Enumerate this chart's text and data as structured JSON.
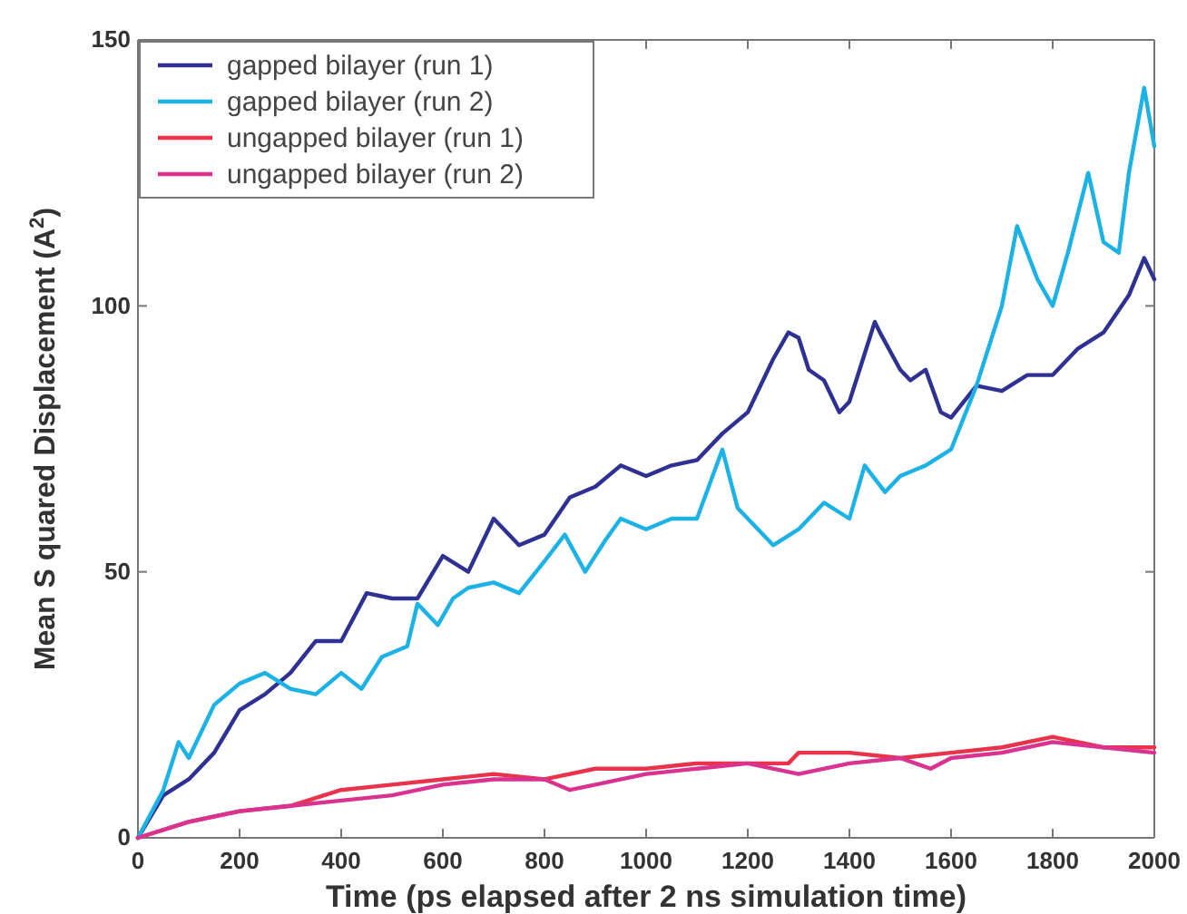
{
  "chart_data": {
    "type": "line",
    "xlabel": "Time  (ps  elapsed  after  2  ns  simulation  time)",
    "ylabel": "Mean S quared  Displacement  (A$^{2}$)",
    "xlim": [
      0,
      2000
    ],
    "xticks": [
      0,
      200,
      400,
      600,
      800,
      1000,
      1200,
      1400,
      1600,
      1800,
      2000
    ],
    "ylim": [
      0,
      150
    ],
    "yticks": [
      0,
      50,
      100,
      150
    ],
    "grid": false,
    "legend": "top left",
    "series": [
      {
        "name": "gapped bilayer (run 1)",
        "color": "#2e3192",
        "x": [
          0,
          50,
          100,
          150,
          200,
          250,
          300,
          350,
          400,
          450,
          500,
          550,
          600,
          650,
          700,
          750,
          800,
          850,
          900,
          950,
          1000,
          1050,
          1100,
          1150,
          1200,
          1250,
          1280,
          1300,
          1320,
          1350,
          1380,
          1400,
          1420,
          1450,
          1460,
          1500,
          1520,
          1550,
          1580,
          1600,
          1650,
          1700,
          1750,
          1800,
          1850,
          1900,
          1950,
          1980,
          2000
        ],
        "values": [
          0,
          8,
          11,
          16,
          24,
          27,
          31,
          37,
          37,
          46,
          45,
          45,
          53,
          50,
          60,
          55,
          57,
          64,
          66,
          70,
          68,
          70,
          71,
          76,
          80,
          90,
          95,
          94,
          88,
          86,
          80,
          82,
          88,
          97,
          95,
          88,
          86,
          88,
          80,
          79,
          85,
          84,
          87,
          87,
          92,
          95,
          102,
          109,
          105
        ]
      },
      {
        "name": "gapped bilayer (run 2)",
        "color": "#1db2e6",
        "x": [
          0,
          50,
          80,
          100,
          150,
          200,
          250,
          300,
          350,
          400,
          440,
          480,
          530,
          550,
          590,
          620,
          650,
          700,
          750,
          800,
          840,
          880,
          920,
          950,
          1000,
          1050,
          1100,
          1150,
          1180,
          1250,
          1300,
          1350,
          1400,
          1430,
          1470,
          1500,
          1550,
          1600,
          1650,
          1700,
          1730,
          1770,
          1800,
          1830,
          1870,
          1900,
          1930,
          1950,
          1980,
          2000
        ],
        "values": [
          0,
          9,
          18,
          15,
          25,
          29,
          31,
          28,
          27,
          31,
          28,
          34,
          36,
          44,
          40,
          45,
          47,
          48,
          46,
          52,
          57,
          50,
          56,
          60,
          58,
          60,
          60,
          73,
          62,
          55,
          58,
          63,
          60,
          70,
          65,
          68,
          70,
          73,
          85,
          100,
          115,
          105,
          100,
          110,
          125,
          112,
          110,
          125,
          141,
          130
        ]
      },
      {
        "name": "ungapped bilayer (run 1)",
        "color": "#e8334a",
        "x": [
          0,
          100,
          200,
          300,
          400,
          500,
          600,
          700,
          800,
          900,
          1000,
          1100,
          1200,
          1280,
          1300,
          1400,
          1500,
          1600,
          1700,
          1800,
          1900,
          2000
        ],
        "values": [
          0,
          3,
          5,
          6,
          9,
          10,
          11,
          12,
          11,
          13,
          13,
          14,
          14,
          14,
          16,
          16,
          15,
          16,
          17,
          19,
          17,
          17
        ]
      },
      {
        "name": "ungapped bilayer (run 2)",
        "color": "#d9338f",
        "x": [
          0,
          100,
          200,
          300,
          400,
          500,
          600,
          700,
          800,
          850,
          900,
          1000,
          1100,
          1200,
          1300,
          1400,
          1500,
          1560,
          1600,
          1700,
          1800,
          1900,
          2000
        ],
        "values": [
          0,
          3,
          5,
          6,
          7,
          8,
          10,
          11,
          11,
          9,
          10,
          12,
          13,
          14,
          12,
          14,
          15,
          13,
          15,
          16,
          18,
          17,
          16
        ]
      }
    ]
  }
}
